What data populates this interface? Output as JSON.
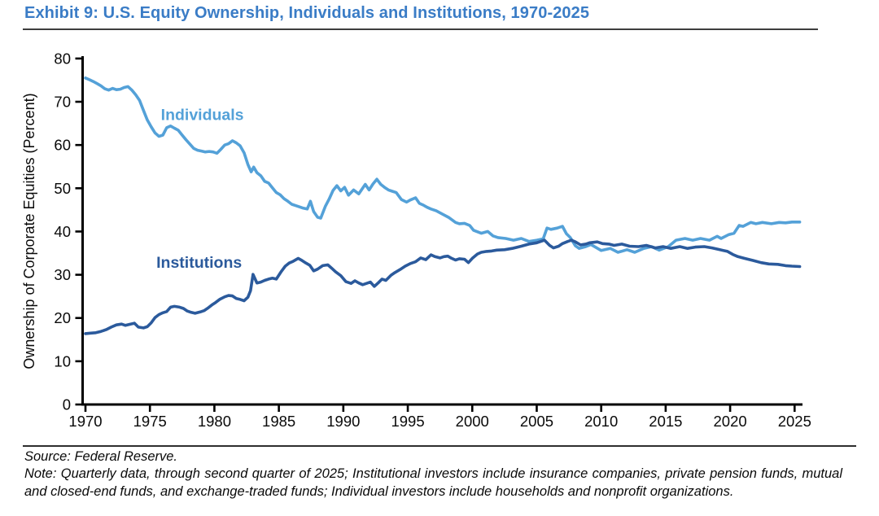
{
  "header": {
    "title": "Exhibit 9: U.S. Equity Ownership, Individuals and Institutions, 1970-2025"
  },
  "footer": {
    "source": "Source: Federal Reserve.",
    "note": "Note: Quarterly data, through second quarter of 2025; Institutional investors include insurance companies, private pension funds, mutual and closed-end funds, and exchange-traded funds; Individual investors include households and nonprofit organizations."
  },
  "colors": {
    "title_blue": "#3a7cc6",
    "individuals_blue": "#54a1d8",
    "institutions_blue": "#2b5a9c",
    "axis_black": "#000000"
  },
  "chart_data": {
    "type": "line",
    "title": "Exhibit 9: U.S. Equity Ownership, Individuals and Institutions, 1970-2025",
    "xlabel": "",
    "ylabel": "Ownership of Corporate Equities (Percent)",
    "xlim": [
      1970,
      2025.8
    ],
    "ylim": [
      0,
      80
    ],
    "x_ticks": [
      1970,
      1975,
      1980,
      1985,
      1990,
      1995,
      2000,
      2005,
      2010,
      2015,
      2020,
      2025
    ],
    "y_ticks": [
      0,
      10,
      20,
      30,
      40,
      50,
      60,
      70,
      80
    ],
    "grid": false,
    "legend": "inline-labels",
    "series": [
      {
        "name": "Individuals",
        "color": "#54a1d8",
        "label": "Individuals",
        "label_pos": {
          "x": 1975.85,
          "y": 65.8
        },
        "points": [
          [
            1970.0,
            75.5
          ],
          [
            1970.3,
            75.1
          ],
          [
            1970.6,
            74.7
          ],
          [
            1970.9,
            74.2
          ],
          [
            1971.2,
            73.7
          ],
          [
            1971.5,
            73.0
          ],
          [
            1971.8,
            72.7
          ],
          [
            1972.1,
            73.1
          ],
          [
            1972.4,
            72.8
          ],
          [
            1972.7,
            72.9
          ],
          [
            1973.0,
            73.3
          ],
          [
            1973.3,
            73.5
          ],
          [
            1973.6,
            72.7
          ],
          [
            1973.9,
            71.6
          ],
          [
            1974.2,
            70.3
          ],
          [
            1974.5,
            68.0
          ],
          [
            1974.8,
            65.8
          ],
          [
            1975.1,
            64.2
          ],
          [
            1975.4,
            62.8
          ],
          [
            1975.7,
            62.0
          ],
          [
            1976.0,
            62.3
          ],
          [
            1976.3,
            64.0
          ],
          [
            1976.6,
            64.4
          ],
          [
            1976.9,
            63.9
          ],
          [
            1977.2,
            63.4
          ],
          [
            1977.5,
            62.3
          ],
          [
            1977.8,
            61.2
          ],
          [
            1978.1,
            60.2
          ],
          [
            1978.4,
            59.2
          ],
          [
            1978.7,
            58.8
          ],
          [
            1979.0,
            58.6
          ],
          [
            1979.3,
            58.4
          ],
          [
            1979.6,
            58.5
          ],
          [
            1979.9,
            58.4
          ],
          [
            1980.2,
            58.1
          ],
          [
            1980.5,
            59.0
          ],
          [
            1980.8,
            60.0
          ],
          [
            1981.1,
            60.3
          ],
          [
            1981.4,
            61.0
          ],
          [
            1981.7,
            60.5
          ],
          [
            1982.0,
            59.8
          ],
          [
            1982.3,
            58.2
          ],
          [
            1982.6,
            55.5
          ],
          [
            1982.85,
            53.8
          ],
          [
            1983.05,
            54.9
          ],
          [
            1983.3,
            53.6
          ],
          [
            1983.6,
            52.9
          ],
          [
            1983.9,
            51.6
          ],
          [
            1984.2,
            51.2
          ],
          [
            1984.5,
            50.1
          ],
          [
            1984.8,
            49.0
          ],
          [
            1985.1,
            48.5
          ],
          [
            1985.4,
            47.6
          ],
          [
            1985.7,
            47.0
          ],
          [
            1986.0,
            46.3
          ],
          [
            1986.3,
            46.0
          ],
          [
            1986.6,
            45.7
          ],
          [
            1986.9,
            45.4
          ],
          [
            1987.2,
            45.2
          ],
          [
            1987.45,
            47.0
          ],
          [
            1987.7,
            44.6
          ],
          [
            1988.0,
            43.3
          ],
          [
            1988.25,
            43.1
          ],
          [
            1988.6,
            45.8
          ],
          [
            1988.9,
            47.5
          ],
          [
            1989.2,
            49.5
          ],
          [
            1989.5,
            50.6
          ],
          [
            1989.8,
            49.4
          ],
          [
            1990.1,
            50.2
          ],
          [
            1990.4,
            48.4
          ],
          [
            1990.8,
            49.6
          ],
          [
            1991.2,
            48.7
          ],
          [
            1991.7,
            50.9
          ],
          [
            1992.0,
            49.6
          ],
          [
            1992.3,
            51.0
          ],
          [
            1992.6,
            52.1
          ],
          [
            1992.9,
            50.9
          ],
          [
            1993.2,
            50.2
          ],
          [
            1993.5,
            49.6
          ],
          [
            1993.8,
            49.3
          ],
          [
            1994.1,
            49.0
          ],
          [
            1994.5,
            47.4
          ],
          [
            1994.9,
            46.8
          ],
          [
            1995.2,
            47.3
          ],
          [
            1995.6,
            47.8
          ],
          [
            1995.9,
            46.5
          ],
          [
            1996.2,
            46.1
          ],
          [
            1996.5,
            45.6
          ],
          [
            1996.8,
            45.2
          ],
          [
            1997.2,
            44.8
          ],
          [
            1997.7,
            44.0
          ],
          [
            1998.2,
            43.2
          ],
          [
            1998.7,
            42.1
          ],
          [
            1999.0,
            41.8
          ],
          [
            1999.4,
            41.9
          ],
          [
            1999.8,
            41.4
          ],
          [
            2000.1,
            40.3
          ],
          [
            2000.7,
            39.6
          ],
          [
            2001.2,
            40.0
          ],
          [
            2001.6,
            39.0
          ],
          [
            2002.0,
            38.6
          ],
          [
            2002.6,
            38.4
          ],
          [
            2003.2,
            38.0
          ],
          [
            2003.8,
            38.4
          ],
          [
            2004.4,
            37.7
          ],
          [
            2005.0,
            38.0
          ],
          [
            2005.5,
            38.3
          ],
          [
            2005.8,
            40.8
          ],
          [
            2006.1,
            40.5
          ],
          [
            2006.6,
            40.8
          ],
          [
            2007.0,
            41.2
          ],
          [
            2007.3,
            39.5
          ],
          [
            2007.6,
            38.6
          ],
          [
            2008.0,
            36.7
          ],
          [
            2008.3,
            36.1
          ],
          [
            2008.8,
            36.5
          ],
          [
            2009.2,
            37.0
          ],
          [
            2009.6,
            36.3
          ],
          [
            2010.0,
            35.6
          ],
          [
            2010.7,
            36.1
          ],
          [
            2011.3,
            35.2
          ],
          [
            2012.0,
            35.8
          ],
          [
            2012.6,
            35.2
          ],
          [
            2013.3,
            36.1
          ],
          [
            2013.9,
            36.5
          ],
          [
            2014.5,
            35.7
          ],
          [
            2015.2,
            36.5
          ],
          [
            2015.8,
            38.0
          ],
          [
            2016.5,
            38.4
          ],
          [
            2017.1,
            38.0
          ],
          [
            2017.7,
            38.4
          ],
          [
            2018.4,
            38.0
          ],
          [
            2019.0,
            38.9
          ],
          [
            2019.3,
            38.4
          ],
          [
            2019.9,
            39.3
          ],
          [
            2020.3,
            39.6
          ],
          [
            2020.7,
            41.4
          ],
          [
            2021.0,
            41.2
          ],
          [
            2021.6,
            42.1
          ],
          [
            2022.0,
            41.8
          ],
          [
            2022.5,
            42.1
          ],
          [
            2023.2,
            41.8
          ],
          [
            2023.8,
            42.1
          ],
          [
            2024.3,
            42.0
          ],
          [
            2024.8,
            42.2
          ],
          [
            2025.4,
            42.2
          ]
        ]
      },
      {
        "name": "Institutions",
        "color": "#2b5a9c",
        "label": "Institutions",
        "label_pos": {
          "x": 1975.5,
          "y": 31.6
        },
        "points": [
          [
            1970.0,
            16.4
          ],
          [
            1970.4,
            16.5
          ],
          [
            1970.8,
            16.6
          ],
          [
            1971.2,
            16.9
          ],
          [
            1971.6,
            17.3
          ],
          [
            1972.0,
            17.9
          ],
          [
            1972.4,
            18.4
          ],
          [
            1972.8,
            18.6
          ],
          [
            1973.1,
            18.3
          ],
          [
            1973.5,
            18.6
          ],
          [
            1973.8,
            18.8
          ],
          [
            1974.1,
            17.9
          ],
          [
            1974.5,
            17.7
          ],
          [
            1974.8,
            18.0
          ],
          [
            1975.1,
            18.9
          ],
          [
            1975.4,
            20.1
          ],
          [
            1975.7,
            20.8
          ],
          [
            1976.0,
            21.2
          ],
          [
            1976.3,
            21.5
          ],
          [
            1976.6,
            22.5
          ],
          [
            1976.9,
            22.7
          ],
          [
            1977.3,
            22.5
          ],
          [
            1977.6,
            22.2
          ],
          [
            1977.9,
            21.6
          ],
          [
            1978.2,
            21.3
          ],
          [
            1978.5,
            21.1
          ],
          [
            1978.9,
            21.4
          ],
          [
            1979.2,
            21.7
          ],
          [
            1979.5,
            22.3
          ],
          [
            1979.8,
            23.0
          ],
          [
            1980.1,
            23.6
          ],
          [
            1980.4,
            24.3
          ],
          [
            1980.8,
            24.9
          ],
          [
            1981.1,
            25.2
          ],
          [
            1981.4,
            25.1
          ],
          [
            1981.7,
            24.5
          ],
          [
            1982.0,
            24.3
          ],
          [
            1982.3,
            24.0
          ],
          [
            1982.6,
            24.8
          ],
          [
            1982.8,
            26.3
          ],
          [
            1983.0,
            30.1
          ],
          [
            1983.3,
            28.1
          ],
          [
            1983.6,
            28.3
          ],
          [
            1983.9,
            28.7
          ],
          [
            1984.2,
            29.0
          ],
          [
            1984.5,
            29.2
          ],
          [
            1984.8,
            29.0
          ],
          [
            1985.2,
            30.8
          ],
          [
            1985.5,
            32.0
          ],
          [
            1985.8,
            32.7
          ],
          [
            1986.1,
            33.1
          ],
          [
            1986.5,
            33.8
          ],
          [
            1986.8,
            33.3
          ],
          [
            1987.1,
            32.7
          ],
          [
            1987.4,
            32.2
          ],
          [
            1987.7,
            30.9
          ],
          [
            1988.0,
            31.3
          ],
          [
            1988.4,
            32.1
          ],
          [
            1988.8,
            32.3
          ],
          [
            1989.1,
            31.5
          ],
          [
            1989.4,
            30.7
          ],
          [
            1989.8,
            29.8
          ],
          [
            1990.2,
            28.4
          ],
          [
            1990.6,
            28.0
          ],
          [
            1990.9,
            28.6
          ],
          [
            1991.2,
            28.1
          ],
          [
            1991.5,
            27.7
          ],
          [
            1991.8,
            28.0
          ],
          [
            1992.1,
            28.3
          ],
          [
            1992.4,
            27.3
          ],
          [
            1992.7,
            28.1
          ],
          [
            1993.0,
            29.0
          ],
          [
            1993.3,
            28.7
          ],
          [
            1993.7,
            29.9
          ],
          [
            1994.0,
            30.5
          ],
          [
            1994.4,
            31.2
          ],
          [
            1994.8,
            32.0
          ],
          [
            1995.2,
            32.6
          ],
          [
            1995.6,
            33.0
          ],
          [
            1996.0,
            33.9
          ],
          [
            1996.4,
            33.5
          ],
          [
            1996.8,
            34.6
          ],
          [
            1997.1,
            34.2
          ],
          [
            1997.5,
            33.9
          ],
          [
            1997.8,
            34.2
          ],
          [
            1998.1,
            34.3
          ],
          [
            1998.4,
            33.8
          ],
          [
            1998.7,
            33.4
          ],
          [
            1999.0,
            33.7
          ],
          [
            1999.4,
            33.6
          ],
          [
            1999.7,
            32.8
          ],
          [
            2000.0,
            33.8
          ],
          [
            2000.4,
            34.8
          ],
          [
            2000.7,
            35.2
          ],
          [
            2001.1,
            35.4
          ],
          [
            2001.5,
            35.5
          ],
          [
            2001.9,
            35.7
          ],
          [
            2002.5,
            35.8
          ],
          [
            2003.1,
            36.1
          ],
          [
            2003.8,
            36.6
          ],
          [
            2004.4,
            37.1
          ],
          [
            2005.0,
            37.4
          ],
          [
            2005.6,
            38.0
          ],
          [
            2006.0,
            36.8
          ],
          [
            2006.3,
            36.2
          ],
          [
            2006.7,
            36.6
          ],
          [
            2007.0,
            37.2
          ],
          [
            2007.4,
            37.7
          ],
          [
            2007.7,
            38.0
          ],
          [
            2008.0,
            37.6
          ],
          [
            2008.4,
            36.9
          ],
          [
            2008.8,
            37.1
          ],
          [
            2009.1,
            37.4
          ],
          [
            2009.7,
            37.6
          ],
          [
            2010.1,
            37.2
          ],
          [
            2010.6,
            37.1
          ],
          [
            2011.0,
            36.8
          ],
          [
            2011.6,
            37.1
          ],
          [
            2012.2,
            36.6
          ],
          [
            2012.9,
            36.5
          ],
          [
            2013.5,
            36.8
          ],
          [
            2014.2,
            36.2
          ],
          [
            2014.8,
            36.5
          ],
          [
            2015.4,
            36.1
          ],
          [
            2016.1,
            36.5
          ],
          [
            2016.7,
            36.1
          ],
          [
            2017.3,
            36.4
          ],
          [
            2018.0,
            36.5
          ],
          [
            2018.6,
            36.2
          ],
          [
            2019.2,
            35.8
          ],
          [
            2019.8,
            35.4
          ],
          [
            2020.2,
            34.7
          ],
          [
            2020.6,
            34.2
          ],
          [
            2021.1,
            33.8
          ],
          [
            2021.8,
            33.3
          ],
          [
            2022.4,
            32.8
          ],
          [
            2023.0,
            32.5
          ],
          [
            2023.7,
            32.4
          ],
          [
            2024.3,
            32.1
          ],
          [
            2024.8,
            32.0
          ],
          [
            2025.4,
            31.9
          ]
        ]
      }
    ]
  }
}
